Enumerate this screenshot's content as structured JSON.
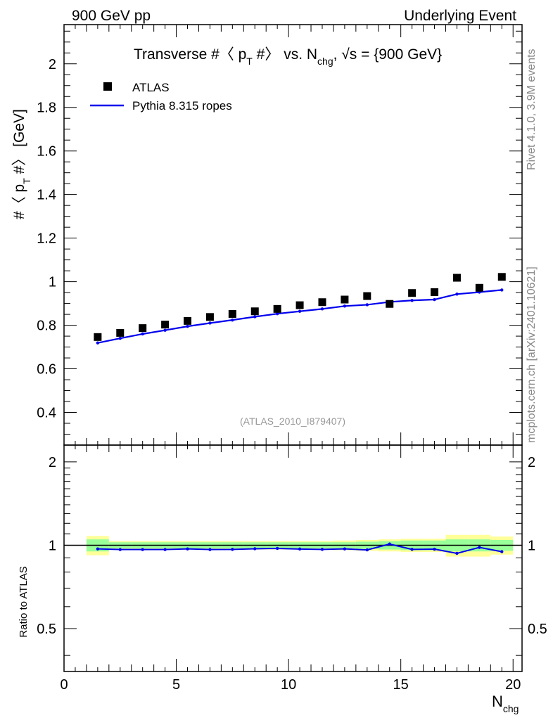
{
  "header": {
    "left": "900 GeV pp",
    "right": "Underlying Event"
  },
  "side": {
    "rivet": "Rivet 4.1.0,  3.9M events",
    "mcplots": "mcplots.cern.ch [arXiv:2401.10621]"
  },
  "chart_data": {
    "type": "scatter",
    "title": {
      "prefix": "Transverse #〈 p",
      "sub_t": "T",
      "mid": " #〉 vs. N",
      "sub_chg": "chg",
      "suffix": ", √s = {900 GeV}"
    },
    "analysis_id": "(ATLAS_2010_I879407)",
    "ylabel": {
      "prefix": "#〈 p",
      "sub": "T",
      "suffix": " #〉 [GeV]"
    },
    "xlabel": {
      "main": "N",
      "sub": "chg"
    },
    "ratio_ylabel": "Ratio to ATLAS",
    "xlim": [
      0,
      20.4
    ],
    "ylim": [
      0.25,
      2.18
    ],
    "ratio_ylim": [
      0.35,
      2.3
    ],
    "x_ticks": [
      "0",
      "5",
      "10",
      "15",
      "20"
    ],
    "y_ticks": [
      "0.4",
      "0.6",
      "0.8",
      "1",
      "1.2",
      "1.4",
      "1.6",
      "1.8",
      "2"
    ],
    "ratio_ticks": [
      "0.5",
      "1",
      "2"
    ],
    "legend": [
      {
        "label": "ATLAS",
        "color": "#000000"
      },
      {
        "label": "Pythia 8.315 ropes",
        "color": "#0000ee"
      }
    ],
    "x": [
      1.5,
      2.5,
      3.5,
      4.5,
      5.5,
      6.5,
      7.5,
      8.5,
      9.5,
      10.5,
      11.5,
      12.5,
      13.5,
      14.5,
      15.5,
      16.5,
      17.5,
      18.5,
      19.5
    ],
    "series": [
      {
        "name": "ATLAS",
        "values": [
          0.746,
          0.765,
          0.787,
          0.803,
          0.82,
          0.838,
          0.852,
          0.864,
          0.875,
          0.892,
          0.906,
          0.918,
          0.934,
          0.898,
          0.948,
          0.952,
          1.018,
          0.972,
          1.022
        ]
      },
      {
        "name": "Pythia 8.315 ropes",
        "values": [
          0.719,
          0.74,
          0.76,
          0.777,
          0.795,
          0.81,
          0.824,
          0.839,
          0.853,
          0.864,
          0.875,
          0.888,
          0.894,
          0.907,
          0.914,
          0.918,
          0.943,
          0.952,
          0.962
        ]
      }
    ],
    "ratio": [
      0.97,
      0.965,
      0.965,
      0.965,
      0.97,
      0.965,
      0.966,
      0.971,
      0.974,
      0.969,
      0.966,
      0.97,
      0.962,
      1.01,
      0.966,
      0.968,
      0.935,
      0.982,
      0.948
    ],
    "band_green": [
      [
        0.95,
        1.05
      ],
      [
        0.975,
        1.025
      ],
      [
        0.975,
        1.025
      ],
      [
        0.975,
        1.025
      ],
      [
        0.975,
        1.025
      ],
      [
        0.975,
        1.025
      ],
      [
        0.975,
        1.025
      ],
      [
        0.975,
        1.025
      ],
      [
        0.975,
        1.025
      ],
      [
        0.975,
        1.025
      ],
      [
        0.975,
        1.025
      ],
      [
        0.975,
        1.025
      ],
      [
        0.97,
        1.03
      ],
      [
        0.965,
        1.035
      ],
      [
        0.96,
        1.04
      ],
      [
        0.96,
        1.04
      ],
      [
        0.95,
        1.05
      ],
      [
        0.95,
        1.05
      ],
      [
        0.955,
        1.045
      ]
    ],
    "band_yellow": [
      [
        0.92,
        1.08
      ],
      [
        0.965,
        1.035
      ],
      [
        0.965,
        1.035
      ],
      [
        0.965,
        1.035
      ],
      [
        0.965,
        1.035
      ],
      [
        0.965,
        1.035
      ],
      [
        0.965,
        1.035
      ],
      [
        0.965,
        1.035
      ],
      [
        0.965,
        1.035
      ],
      [
        0.965,
        1.035
      ],
      [
        0.965,
        1.035
      ],
      [
        0.96,
        1.04
      ],
      [
        0.955,
        1.045
      ],
      [
        0.95,
        1.05
      ],
      [
        0.945,
        1.055
      ],
      [
        0.945,
        1.055
      ],
      [
        0.91,
        1.09
      ],
      [
        0.91,
        1.09
      ],
      [
        0.925,
        1.075
      ]
    ]
  }
}
